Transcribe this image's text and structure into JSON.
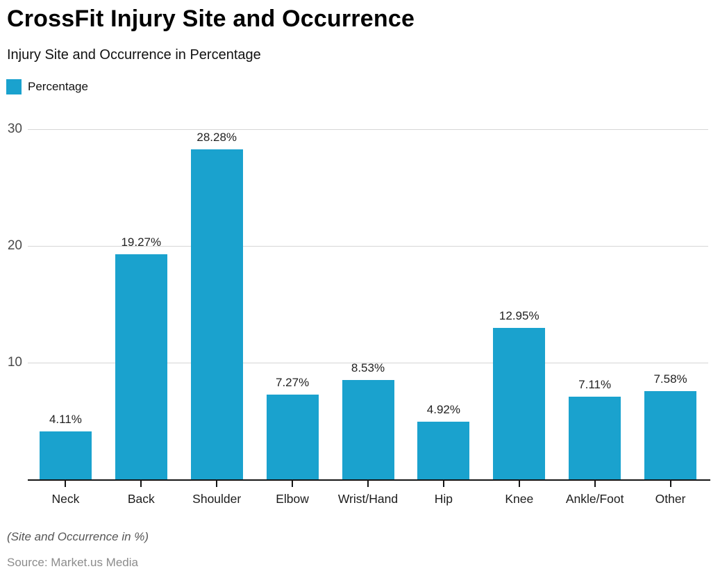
{
  "header": {
    "title": "CrossFit Injury Site and Occurrence",
    "subtitle": "Injury Site and Occurrence in Percentage"
  },
  "legend": {
    "label": "Percentage",
    "swatch_color": "#1aa2ce"
  },
  "chart_data": {
    "type": "bar",
    "title": "CrossFit Injury Site and Occurrence",
    "subtitle": "Injury Site and Occurrence in Percentage",
    "series_name": "Percentage",
    "categories": [
      "Neck",
      "Back",
      "Shoulder",
      "Elbow",
      "Wrist/Hand",
      "Hip",
      "Knee",
      "Ankle/Foot",
      "Other"
    ],
    "values": [
      4.11,
      19.27,
      28.28,
      7.27,
      8.53,
      4.92,
      12.95,
      7.11,
      7.58
    ],
    "value_labels": [
      "4.11%",
      "19.27%",
      "28.28%",
      "7.27%",
      "8.53%",
      "4.92%",
      "12.95%",
      "7.11%",
      "7.58%"
    ],
    "xlabel": "",
    "ylabel": "",
    "ylim": [
      0,
      30
    ],
    "yticks": [
      10,
      20,
      30
    ],
    "grid": true,
    "legend_position": "top-left",
    "bar_color": "#1aa2ce",
    "gridline_color": "#d6d6d6",
    "axis_color": "#141414"
  },
  "footer": {
    "note": "(Site and Occurrence in %)",
    "source": "Source: Market.us Media"
  }
}
